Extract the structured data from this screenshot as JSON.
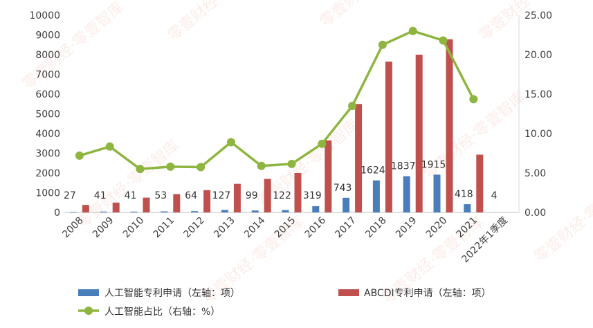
{
  "chart_data": {
    "type": "bar",
    "categories": [
      "2008",
      "2009",
      "2010",
      "2011",
      "2012",
      "2013",
      "2014",
      "2015",
      "2016",
      "2017",
      "2018",
      "2019",
      "2020",
      "2021",
      "2022年1季度"
    ],
    "series": [
      {
        "name": "人工智能专利申请（左轴：项）",
        "type": "bar",
        "axis": "left",
        "color": "#4a7ebb",
        "values": [
          27,
          41,
          41,
          53,
          64,
          127,
          99,
          122,
          319,
          743,
          1624,
          1837,
          1915,
          418,
          4
        ],
        "labels": [
          "27",
          "41",
          "41",
          "53",
          "64",
          "127",
          "99",
          "122",
          "319",
          "743",
          "1624",
          "1837",
          "1915",
          "418",
          "4"
        ]
      },
      {
        "name": "ABCDI专利申请（左轴：项）",
        "type": "bar",
        "axis": "left",
        "color": "#c0504d",
        "values": [
          380,
          500,
          750,
          930,
          1130,
          1450,
          1700,
          2000,
          3650,
          5500,
          7650,
          8000,
          8780,
          2930,
          0
        ]
      },
      {
        "name": "人工智能占比（右轴：%）",
        "type": "line",
        "axis": "right",
        "color": "#8db53f",
        "values": [
          7.2,
          8.35,
          5.5,
          5.8,
          5.75,
          8.9,
          5.9,
          6.15,
          8.7,
          13.5,
          21.25,
          23.0,
          21.8,
          14.35,
          null
        ]
      }
    ],
    "yAxisLeft": {
      "min": 0,
      "max": 10000,
      "step": 1000,
      "ticks": [
        "0",
        "1000",
        "2000",
        "3000",
        "4000",
        "5000",
        "6000",
        "7000",
        "8000",
        "9000",
        "10000"
      ]
    },
    "yAxisRight": {
      "min": 0,
      "max": 25,
      "step": 5,
      "ticks": [
        "0.00",
        "5.00",
        "10.00",
        "15.00",
        "20.00",
        "25.00"
      ]
    },
    "legend": {
      "position": "bottom"
    },
    "grid": false
  },
  "watermark_text": "零壹财经·零壹智库"
}
